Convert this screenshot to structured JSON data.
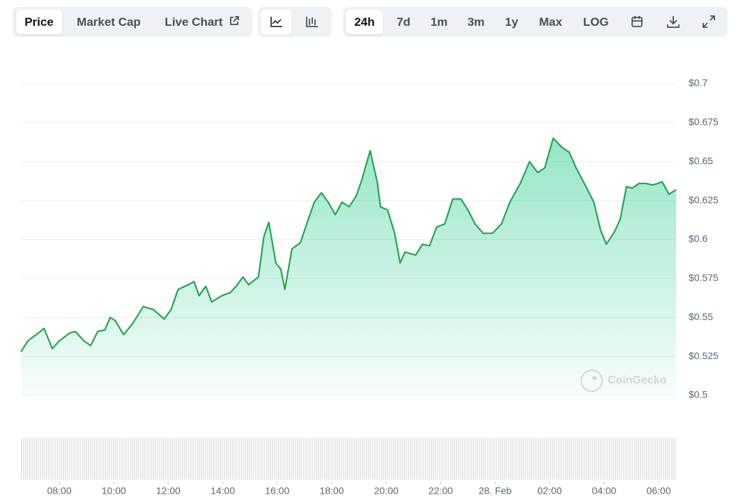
{
  "toolbar": {
    "views": [
      "Price",
      "Market Cap",
      "Live Chart"
    ],
    "ranges": [
      "24h",
      "7d",
      "1m",
      "3m",
      "1y",
      "Max",
      "LOG"
    ]
  },
  "chart_data": {
    "type": "line",
    "watermark": "CoinGecko",
    "x": [
      6.59,
      6.85,
      7.23,
      7.44,
      7.74,
      8.0,
      8.38,
      8.59,
      8.9,
      9.15,
      9.41,
      9.67,
      9.87,
      10.05,
      10.36,
      10.69,
      11.08,
      11.46,
      11.85,
      12.1,
      12.36,
      12.74,
      12.95,
      13.13,
      13.38,
      13.59,
      13.97,
      14.28,
      14.49,
      14.74,
      14.95,
      15.31,
      15.51,
      15.69,
      15.95,
      16.13,
      16.28,
      16.54,
      16.85,
      17.1,
      17.36,
      17.62,
      17.87,
      18.13,
      18.38,
      18.64,
      18.9,
      19.1,
      19.41,
      19.67,
      19.79,
      20.05,
      20.31,
      20.51,
      20.69,
      21.08,
      21.33,
      21.59,
      21.85,
      22.15,
      22.44,
      22.74,
      23.0,
      23.26,
      23.56,
      23.9,
      24.23,
      24.54,
      24.92,
      25.26,
      25.56,
      25.82,
      26.13,
      26.46,
      26.72,
      26.97,
      27.36,
      27.62,
      27.87,
      28.08,
      28.38,
      28.59,
      28.82,
      29.03,
      29.28,
      29.54,
      29.79,
      30.13,
      30.38,
      30.64
    ],
    "series": [
      {
        "color": "#1fa84a",
        "values": [
          0.528,
          0.535,
          0.54,
          0.543,
          0.53,
          0.535,
          0.54,
          0.541,
          0.535,
          0.532,
          0.541,
          0.542,
          0.55,
          0.548,
          0.539,
          0.546,
          0.557,
          0.555,
          0.549,
          0.555,
          0.568,
          0.571,
          0.573,
          0.564,
          0.57,
          0.56,
          0.564,
          0.566,
          0.57,
          0.576,
          0.571,
          0.576,
          0.602,
          0.611,
          0.585,
          0.581,
          0.568,
          0.594,
          0.598,
          0.611,
          0.624,
          0.63,
          0.624,
          0.616,
          0.624,
          0.621,
          0.628,
          0.638,
          0.657,
          0.637,
          0.621,
          0.619,
          0.604,
          0.585,
          0.592,
          0.59,
          0.597,
          0.596,
          0.608,
          0.61,
          0.626,
          0.626,
          0.619,
          0.61,
          0.604,
          0.604,
          0.61,
          0.624,
          0.636,
          0.65,
          0.643,
          0.646,
          0.665,
          0.659,
          0.656,
          0.646,
          0.633,
          0.624,
          0.606,
          0.597,
          0.605,
          0.613,
          0.634,
          0.633,
          0.636,
          0.636,
          0.635,
          0.637,
          0.629,
          0.632
        ]
      }
    ],
    "xlim": [
      6.59,
      30.64
    ],
    "xticks": [
      {
        "value": 8,
        "label": "08:00"
      },
      {
        "value": 10,
        "label": "10:00"
      },
      {
        "value": 12,
        "label": "12:00"
      },
      {
        "value": 14,
        "label": "14:00"
      },
      {
        "value": 16,
        "label": "16:00"
      },
      {
        "value": 18,
        "label": "18:00"
      },
      {
        "value": 20,
        "label": "20:00"
      },
      {
        "value": 22,
        "label": "22:00"
      },
      {
        "value": 24,
        "label": "28. Feb"
      },
      {
        "value": 26,
        "label": "02:00"
      },
      {
        "value": 28,
        "label": "04:00"
      },
      {
        "value": 30,
        "label": "06:00"
      }
    ],
    "ylim": [
      0.5,
      0.7
    ],
    "yticks": [
      {
        "value": 0.5,
        "label": "$0.5"
      },
      {
        "value": 0.525,
        "label": "$0.525"
      },
      {
        "value": 0.55,
        "label": "$0.55"
      },
      {
        "value": 0.575,
        "label": "$0.575"
      },
      {
        "value": 0.6,
        "label": "$0.6"
      },
      {
        "value": 0.625,
        "label": "$0.625"
      },
      {
        "value": 0.65,
        "label": "$0.65"
      },
      {
        "value": 0.675,
        "label": "$0.675"
      },
      {
        "value": 0.7,
        "label": "$0.7"
      }
    ],
    "grid": true
  }
}
